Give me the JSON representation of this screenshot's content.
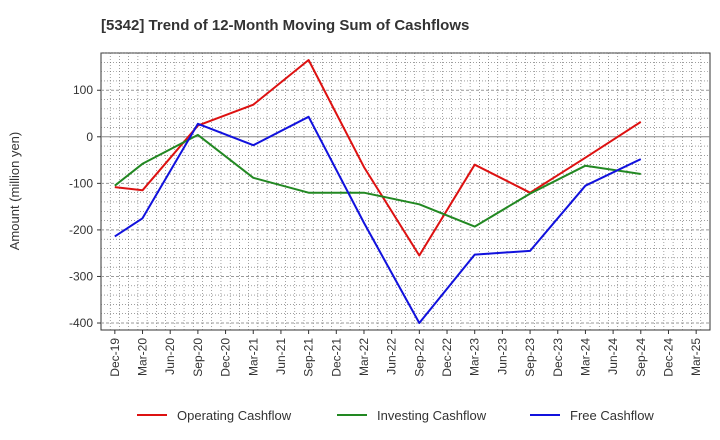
{
  "chart_data": {
    "type": "line",
    "title": "[5342]  Trend of 12-Month Moving Sum of Cashflows",
    "xlabel": "",
    "ylabel": "Amount (million yen)",
    "categories": [
      "Dec-19",
      "Mar-20",
      "Jun-20",
      "Sep-20",
      "Dec-20",
      "Mar-21",
      "Jun-21",
      "Sep-21",
      "Dec-21",
      "Mar-22",
      "Jun-22",
      "Sep-22",
      "Dec-22",
      "Mar-23",
      "Jun-23",
      "Sep-23",
      "Dec-23",
      "Mar-24",
      "Jun-24",
      "Sep-24",
      "Dec-24",
      "Mar-25"
    ],
    "ylim": [
      -415,
      180
    ],
    "yticks": [
      100,
      0,
      -100,
      -200,
      -300,
      -400
    ],
    "grid": true,
    "legend_position": "bottom",
    "series": [
      {
        "name": "Operating Cashflow",
        "color": "#dd1111",
        "values": [
          -108,
          -115,
          null,
          24,
          null,
          69,
          null,
          165,
          null,
          -65,
          null,
          -255,
          null,
          -60,
          null,
          -120,
          null,
          -45,
          null,
          32,
          null,
          null
        ]
      },
      {
        "name": "Investing Cashflow",
        "color": "#228822",
        "values": [
          -105,
          -58,
          null,
          4,
          null,
          -88,
          null,
          -120,
          null,
          -120,
          null,
          -145,
          null,
          -193,
          null,
          -122,
          null,
          -62,
          null,
          -80,
          null,
          null
        ]
      },
      {
        "name": "Free Cashflow",
        "color": "#1111dd",
        "values": [
          -214,
          -175,
          null,
          28,
          null,
          -18,
          null,
          43,
          null,
          -185,
          null,
          -400,
          null,
          -253,
          null,
          -245,
          null,
          -105,
          null,
          -48,
          null,
          null
        ]
      }
    ]
  }
}
